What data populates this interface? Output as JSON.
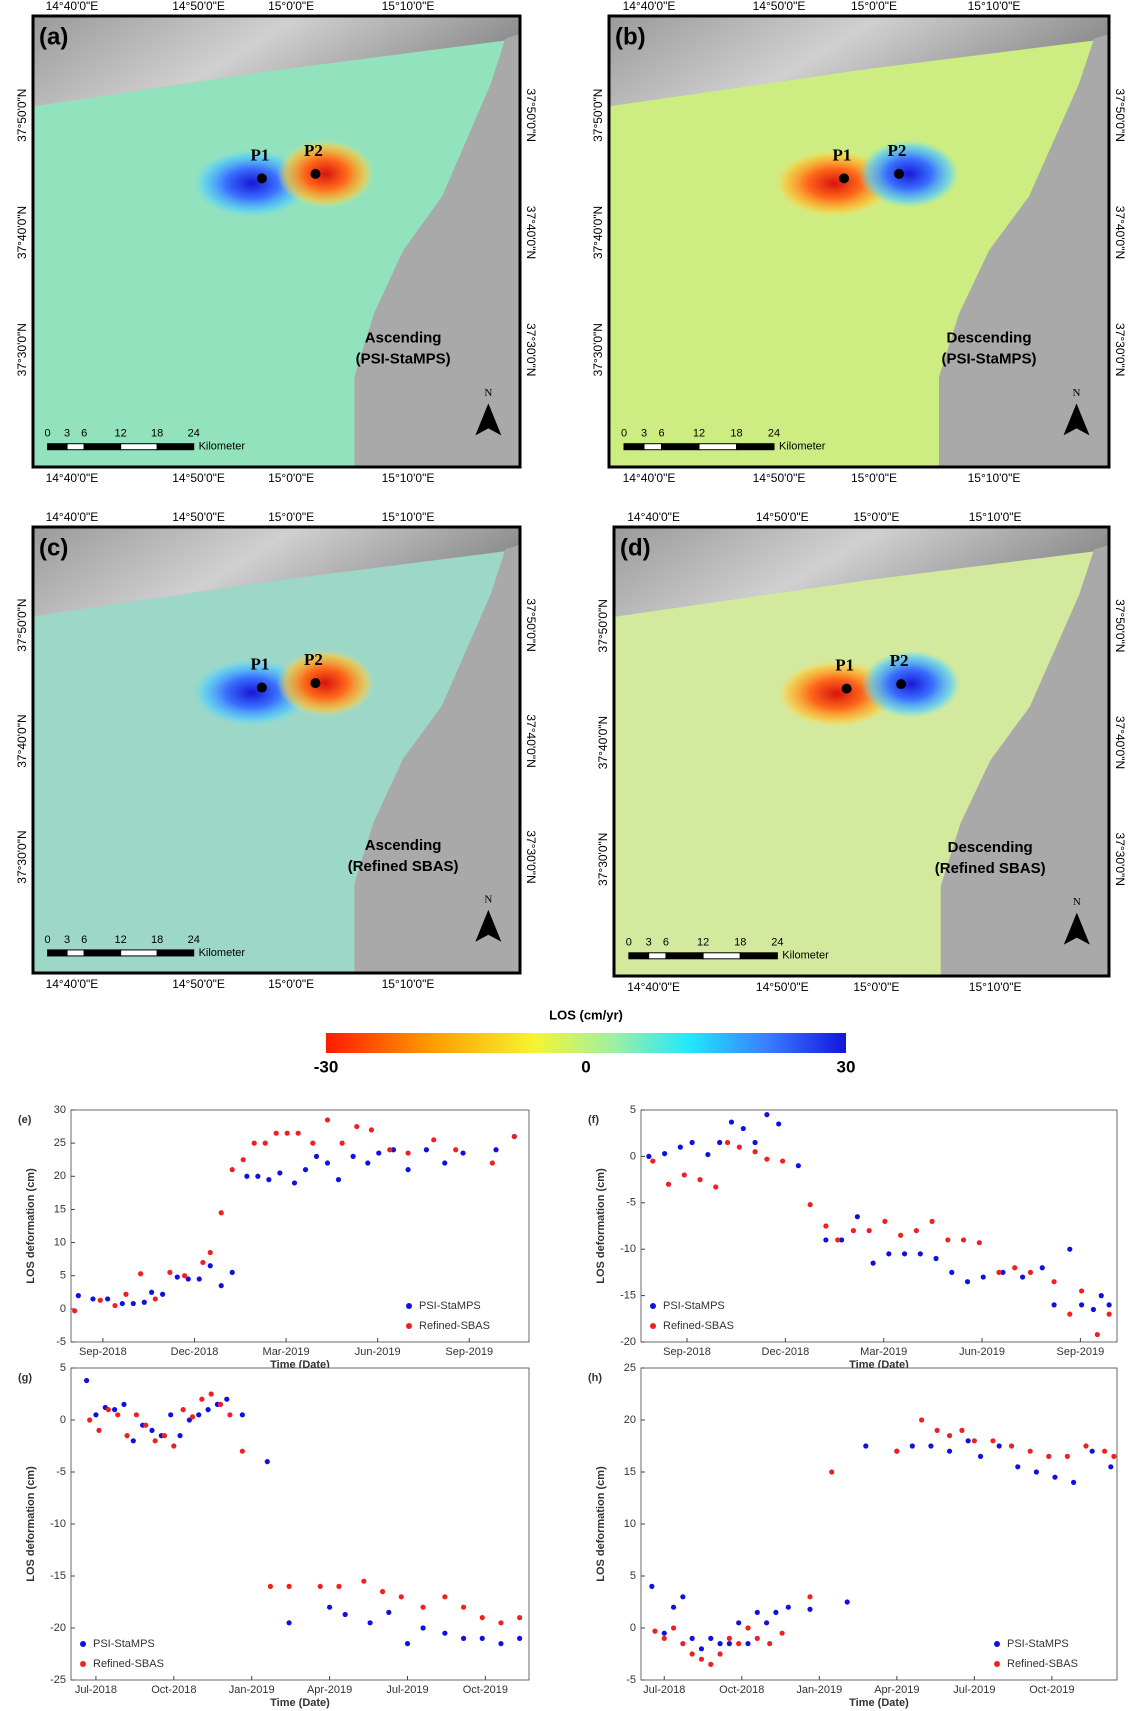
{
  "maps": [
    {
      "label": "(a)",
      "caption": [
        "Ascending",
        "(PSI-StaMPS)"
      ],
      "points": [
        "P1",
        "P2"
      ],
      "p1_color": "blue",
      "p2_color": "red",
      "land_color": "#8fe4bd",
      "lon_labels": [
        "14°40'0\"E",
        "14°50'0\"E",
        "15°0'0\"E",
        "15°10'0\"E"
      ],
      "lat_labels": [
        "37°50'0\"N",
        "37°40'0\"N",
        "37°30'0\"N"
      ],
      "scale_labels": [
        "0",
        "3",
        "6",
        "12",
        "18",
        "24",
        "Kilometer"
      ],
      "north": "N"
    },
    {
      "label": "(b)",
      "caption": [
        "Descending",
        "(PSI-StaMPS)"
      ],
      "points": [
        "P1",
        "P2"
      ],
      "p1_color": "red",
      "p2_color": "blue",
      "land_color": "#cdef80",
      "lon_labels": [
        "14°40'0\"E",
        "14°50'0\"E",
        "15°0'0\"E",
        "15°10'0\"E"
      ],
      "lat_labels": [
        "37°50'0\"N",
        "37°40'0\"N",
        "37°30'0\"N"
      ],
      "scale_labels": [
        "0",
        "3",
        "6",
        "12",
        "18",
        "24",
        "Kilometer"
      ],
      "north": "N"
    },
    {
      "label": "(c)",
      "caption": [
        "Ascending",
        "(Refined SBAS)"
      ],
      "points": [
        "P1",
        "P2"
      ],
      "p1_color": "blue",
      "p2_color": "red",
      "land_color": "#9ad8c8",
      "lon_labels": [
        "14°40'0\"E",
        "14°50'0\"E",
        "15°0'0\"E",
        "15°10'0\"E"
      ],
      "lat_labels": [
        "37°50'0\"N",
        "37°40'0\"N",
        "37°30'0\"N"
      ],
      "scale_labels": [
        "0",
        "3",
        "6",
        "12",
        "18",
        "24",
        "Kilometer"
      ],
      "north": "N"
    },
    {
      "label": "(d)",
      "caption": [
        "Descending",
        "(Refined SBAS)"
      ],
      "points": [
        "P1",
        "P2"
      ],
      "p1_color": "red",
      "p2_color": "blue",
      "land_color": "#d4eb9c",
      "lon_labels": [
        "14°40'0\"E",
        "14°50'0\"E",
        "15°0'0\"E",
        "15°10'0\"E"
      ],
      "lat_labels": [
        "37°50'0\"N",
        "37°40'0\"N",
        "37°30'0\"N"
      ],
      "scale_labels": [
        "0",
        "3",
        "6",
        "12",
        "18",
        "24",
        "Kilometer"
      ],
      "north": "N"
    }
  ],
  "colorbar": {
    "title": "LOS (cm/yr)",
    "ticks": [
      -30,
      0,
      30
    ]
  },
  "chart_data": [
    {
      "type": "scatter",
      "label": "(e)",
      "x_label": "Time (Date)",
      "y_label": "LOS deformation (cm)",
      "legend": "lower right",
      "xlim": [
        2018.58,
        2019.83
      ],
      "ylim": [
        -5,
        30
      ],
      "xticks": [
        {
          "value": 2018.667,
          "label": "Sep-2018"
        },
        {
          "value": 2018.917,
          "label": "Dec-2018"
        },
        {
          "value": 2019.167,
          "label": "Mar-2019"
        },
        {
          "value": 2019.417,
          "label": "Jun-2019"
        },
        {
          "value": 2019.667,
          "label": "Sep-2019"
        }
      ],
      "yticks": [
        -5,
        0,
        5,
        10,
        15,
        20,
        25,
        30
      ],
      "series": [
        {
          "name": "PSI-StaMPS",
          "color": "#1010e0",
          "x": [
            2018.6,
            2018.64,
            2018.68,
            2018.72,
            2018.75,
            2018.78,
            2018.8,
            2018.83,
            2018.87,
            2018.9,
            2018.93,
            2018.96,
            2018.99,
            2019.02,
            2019.06,
            2019.09,
            2019.12,
            2019.15,
            2019.19,
            2019.22,
            2019.25,
            2019.28,
            2019.31,
            2019.35,
            2019.39,
            2019.42,
            2019.46,
            2019.5,
            2019.55,
            2019.6,
            2019.65,
            2019.74,
            2019.79
          ],
          "values": [
            2,
            1.5,
            1.5,
            0.8,
            0.8,
            1.0,
            2.5,
            2.2,
            4.8,
            4.5,
            4.5,
            6.5,
            3.5,
            5.5,
            20,
            20,
            19.5,
            20.5,
            19,
            21,
            23,
            22,
            19.5,
            23,
            22,
            23.5,
            24,
            21,
            24,
            22,
            23.5,
            24,
            26
          ]
        },
        {
          "name": "Refined-SBAS",
          "color": "#f02020",
          "x": [
            2018.59,
            2018.66,
            2018.7,
            2018.73,
            2018.77,
            2018.81,
            2018.85,
            2018.89,
            2018.94,
            2018.96,
            2018.99,
            2019.02,
            2019.05,
            2019.08,
            2019.11,
            2019.14,
            2019.17,
            2019.2,
            2019.24,
            2019.28,
            2019.32,
            2019.36,
            2019.4,
            2019.45,
            2019.5,
            2019.57,
            2019.63,
            2019.73,
            2019.79
          ],
          "values": [
            -0.3,
            1.3,
            0.5,
            2.2,
            5.3,
            1.5,
            5.5,
            5,
            7,
            8.5,
            14.5,
            21,
            22.5,
            25,
            25,
            26.5,
            26.5,
            26.5,
            25,
            28.5,
            25,
            27.5,
            27,
            24,
            23.5,
            25.5,
            24,
            22,
            26
          ]
        }
      ]
    },
    {
      "type": "scatter",
      "label": "(f)",
      "x_label": "Time (Date)",
      "y_label": "LOS deformation (cm)",
      "legend": "lower left",
      "xlim": [
        2018.55,
        2019.76
      ],
      "ylim": [
        -20,
        5
      ],
      "xticks": [
        {
          "value": 2018.667,
          "label": "Sep-2018"
        },
        {
          "value": 2018.917,
          "label": "Dec-2018"
        },
        {
          "value": 2019.167,
          "label": "Mar-2019"
        },
        {
          "value": 2019.417,
          "label": "Jun-2019"
        },
        {
          "value": 2019.667,
          "label": "Sep-2019"
        }
      ],
      "yticks": [
        -20,
        -15,
        -10,
        -5,
        0,
        5
      ],
      "series": [
        {
          "name": "PSI-StaMPS",
          "color": "#1010e0",
          "x": [
            2018.57,
            2018.61,
            2018.65,
            2018.68,
            2018.72,
            2018.75,
            2018.78,
            2018.81,
            2018.84,
            2018.87,
            2018.9,
            2018.95,
            2019.02,
            2019.06,
            2019.1,
            2019.14,
            2019.18,
            2019.22,
            2019.26,
            2019.3,
            2019.34,
            2019.38,
            2019.42,
            2019.47,
            2019.52,
            2019.57,
            2019.6,
            2019.64,
            2019.67,
            2019.7,
            2019.72,
            2019.74
          ],
          "values": [
            0,
            0.3,
            1,
            1.5,
            0.2,
            1.5,
            3.7,
            3,
            1.5,
            4.5,
            3.5,
            -1,
            -9,
            -9,
            -6.5,
            -11.5,
            -10.5,
            -10.5,
            -10.5,
            -11,
            -12.5,
            -13.5,
            -13,
            -12.5,
            -13,
            -12,
            -16,
            -10,
            -16,
            -16.5,
            -15,
            -16
          ]
        },
        {
          "name": "Refined-SBAS",
          "color": "#f02020",
          "x": [
            2018.58,
            2018.62,
            2018.66,
            2018.7,
            2018.74,
            2018.77,
            2018.8,
            2018.84,
            2018.87,
            2018.91,
            2018.98,
            2019.02,
            2019.05,
            2019.09,
            2019.13,
            2019.17,
            2019.21,
            2019.25,
            2019.29,
            2019.33,
            2019.37,
            2019.41,
            2019.46,
            2019.5,
            2019.54,
            2019.6,
            2019.64,
            2019.67,
            2019.71,
            2019.74
          ],
          "values": [
            -0.5,
            -3,
            -2,
            -2.5,
            -3.3,
            1.5,
            1,
            0.5,
            -0.3,
            -0.5,
            -5.2,
            -7.5,
            -9,
            -8,
            -8,
            -7,
            -8.5,
            -8,
            -7,
            -9,
            -9,
            -9.3,
            -12.5,
            -12,
            -12.5,
            -13.5,
            -17,
            -14.5,
            -19.2,
            -17
          ]
        }
      ]
    },
    {
      "type": "scatter",
      "label": "(g)",
      "x_label": "Time (Date)",
      "y_label": "LOS deformation (cm)",
      "legend": "lower left",
      "xlim": [
        2018.42,
        2019.89
      ],
      "ylim": [
        -25,
        5
      ],
      "xticks": [
        {
          "value": 2018.5,
          "label": "Jul-2018"
        },
        {
          "value": 2018.75,
          "label": "Oct-2018"
        },
        {
          "value": 2019.0,
          "label": "Jan-2019"
        },
        {
          "value": 2019.25,
          "label": "Apr-2019"
        },
        {
          "value": 2019.5,
          "label": "Jul-2019"
        },
        {
          "value": 2019.75,
          "label": "Oct-2019"
        }
      ],
      "yticks": [
        -25,
        -20,
        -15,
        -10,
        -5,
        0,
        5
      ],
      "series": [
        {
          "name": "PSI-StaMPS",
          "color": "#1010e0",
          "x": [
            2018.47,
            2018.5,
            2018.53,
            2018.56,
            2018.59,
            2018.62,
            2018.65,
            2018.68,
            2018.71,
            2018.74,
            2018.77,
            2018.8,
            2018.83,
            2018.86,
            2018.89,
            2018.92,
            2018.97,
            2019.05,
            2019.12,
            2019.25,
            2019.3,
            2019.38,
            2019.44,
            2019.5,
            2019.55,
            2019.62,
            2019.68,
            2019.74,
            2019.8,
            2019.86
          ],
          "values": [
            3.8,
            0.5,
            1.2,
            1,
            1.5,
            -2,
            -0.5,
            -1,
            -1.5,
            0.5,
            -1.5,
            0,
            0.5,
            1,
            1.5,
            2,
            0.5,
            -4,
            -19.5,
            -18,
            -18.7,
            -19.5,
            -18.5,
            -21.5,
            -20,
            -20.5,
            -21,
            -21,
            -21.5,
            -21
          ]
        },
        {
          "name": "Refined-SBAS",
          "color": "#f02020",
          "x": [
            2018.48,
            2018.51,
            2018.54,
            2018.57,
            2018.6,
            2018.63,
            2018.66,
            2018.69,
            2018.72,
            2018.75,
            2018.78,
            2018.81,
            2018.84,
            2018.87,
            2018.9,
            2018.93,
            2018.97,
            2019.06,
            2019.12,
            2019.22,
            2019.28,
            2019.36,
            2019.42,
            2019.48,
            2019.55,
            2019.62,
            2019.68,
            2019.74,
            2019.8,
            2019.86
          ],
          "values": [
            0,
            -1,
            1,
            0.5,
            -1.5,
            0.5,
            -0.5,
            -2,
            -1.5,
            -2.5,
            1,
            0.3,
            2,
            2.5,
            1.5,
            0.5,
            -3,
            -16,
            -16,
            -16,
            -16,
            -15.5,
            -16.5,
            -17,
            -18,
            -17,
            -18,
            -19,
            -19.5,
            -19
          ]
        }
      ]
    },
    {
      "type": "scatter",
      "label": "(h)",
      "x_label": "Time (Date)",
      "y_label": "LOS deformation (cm)",
      "legend": "lower right",
      "xlim": [
        2018.425,
        2019.96
      ],
      "ylim": [
        -5,
        25
      ],
      "xticks": [
        {
          "value": 2018.5,
          "label": "Jul-2018"
        },
        {
          "value": 2018.75,
          "label": "Oct-2018"
        },
        {
          "value": 2019.0,
          "label": "Jan-2019"
        },
        {
          "value": 2019.25,
          "label": "Apr-2019"
        },
        {
          "value": 2019.5,
          "label": "Jul-2019"
        },
        {
          "value": 2019.75,
          "label": "Oct-2019"
        }
      ],
      "yticks": [
        -5,
        0,
        5,
        10,
        15,
        20,
        25
      ],
      "series": [
        {
          "name": "PSI-StaMPS",
          "color": "#1010e0",
          "x": [
            2018.46,
            2018.5,
            2018.53,
            2018.56,
            2018.59,
            2018.62,
            2018.65,
            2018.68,
            2018.71,
            2018.74,
            2018.77,
            2018.8,
            2018.83,
            2018.86,
            2018.9,
            2018.97,
            2019.09,
            2019.15,
            2019.25,
            2019.3,
            2019.36,
            2019.42,
            2019.48,
            2019.52,
            2019.58,
            2019.64,
            2019.7,
            2019.76,
            2019.82,
            2019.88,
            2019.94
          ],
          "values": [
            4,
            -0.5,
            2,
            3,
            -1,
            -2,
            -1,
            -1.5,
            -1.5,
            0.5,
            -1.5,
            1.5,
            0.5,
            1.5,
            2,
            1.8,
            2.5,
            17.5,
            17,
            17.5,
            17.5,
            17,
            18,
            16.5,
            17.5,
            15.5,
            15,
            14.5,
            14,
            17,
            15.5
          ]
        },
        {
          "name": "Refined-SBAS",
          "color": "#f02020",
          "x": [
            2018.47,
            2018.5,
            2018.53,
            2018.56,
            2018.59,
            2018.62,
            2018.65,
            2018.68,
            2018.71,
            2018.74,
            2018.77,
            2018.8,
            2018.84,
            2018.88,
            2018.97,
            2019.04,
            2019.25,
            2019.33,
            2019.38,
            2019.42,
            2019.46,
            2019.5,
            2019.56,
            2019.62,
            2019.68,
            2019.74,
            2019.8,
            2019.86,
            2019.92,
            2019.95
          ],
          "values": [
            -0.3,
            -1,
            0,
            -1.5,
            -2.5,
            -3,
            -3.5,
            -2.5,
            -1,
            -1.5,
            0,
            -1,
            -1.5,
            -0.5,
            3,
            15,
            17,
            20,
            19,
            18.5,
            19,
            18,
            18,
            17.5,
            17,
            16.5,
            16.5,
            17.5,
            17,
            16.5
          ]
        }
      ]
    }
  ]
}
